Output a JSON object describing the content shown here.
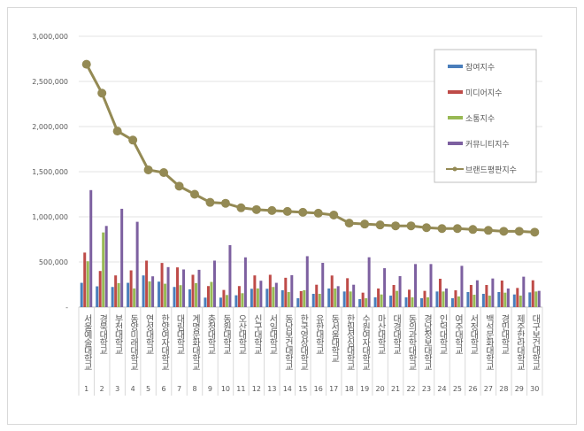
{
  "chart_data": {
    "type": "bar+line",
    "title": "",
    "xlabel": "",
    "ylabel": "",
    "ylim": [
      0,
      3000000
    ],
    "yticks": [
      "-",
      "500,000",
      "1,000,000",
      "1,500,000",
      "2,000,000",
      "2,500,000",
      "3,000,000"
    ],
    "grid": true,
    "legend_position": "top-right",
    "categories": [
      "서울예술대학교",
      "경북대학교",
      "부천대학교",
      "동양미래대학교",
      "연성대학교",
      "한양여자대학교",
      "대림대학교",
      "계명문화대학교",
      "충청대학교",
      "동원대학교",
      "오산대학교",
      "신구대학교",
      "서일대학교",
      "동남보건대학교",
      "한국영상대학교",
      "유한대학교",
      "동서울대학교",
      "한림성심대학교",
      "수원여자대학교",
      "마산대학교",
      "대경대학교",
      "동의과학대학교",
      "경남정보대학교",
      "인덕대학교",
      "여주대학교",
      "서정대학교",
      "백석문화대학교",
      "경민대학교",
      "제주한라대학교",
      "대구보건대학교"
    ],
    "ranks": [
      "1",
      "2",
      "3",
      "4",
      "5",
      "6",
      "7",
      "8",
      "9",
      "10",
      "11",
      "12",
      "13",
      "14",
      "15",
      "16",
      "17",
      "18",
      "19",
      "20",
      "21",
      "22",
      "23",
      "24",
      "25",
      "26",
      "27",
      "28",
      "29",
      "30"
    ],
    "series": [
      {
        "name": "참여지수",
        "type": "bar",
        "color": "#4a7ebb",
        "values": [
          269000,
          230000,
          223000,
          269000,
          351000,
          282000,
          223000,
          197000,
          105000,
          105000,
          131000,
          203000,
          203000,
          187000,
          98000,
          147000,
          206000,
          173000,
          88000,
          108000,
          127000,
          108000,
          98000,
          173000,
          98000,
          167000,
          147000,
          167000,
          140000,
          163000
        ]
      },
      {
        "name": "미디어지수",
        "type": "bar",
        "color": "#be4b48",
        "values": [
          604000,
          400000,
          351000,
          407000,
          515000,
          489000,
          440000,
          358000,
          233000,
          190000,
          233000,
          351000,
          358000,
          325000,
          177000,
          248000,
          350000,
          320000,
          160000,
          206000,
          245000,
          193000,
          180000,
          314000,
          186000,
          245000,
          245000,
          294000,
          212000,
          297000
        ]
      },
      {
        "name": "소통지수",
        "type": "bar",
        "color": "#98b954",
        "values": [
          508000,
          827000,
          266000,
          207000,
          285000,
          259000,
          243000,
          266000,
          279000,
          134000,
          154000,
          207000,
          223000,
          167000,
          187000,
          147000,
          206000,
          173000,
          98000,
          140000,
          180000,
          108000,
          108000,
          173000,
          118000,
          137000,
          127000,
          160000,
          127000,
          173000
        ]
      },
      {
        "name": "커뮤니티지수",
        "type": "bar",
        "color": "#7d60a0",
        "values": [
          1296000,
          899000,
          1089000,
          945000,
          341000,
          443000,
          417000,
          413000,
          515000,
          686000,
          551000,
          292000,
          269000,
          354000,
          564000,
          490000,
          232000,
          248000,
          552000,
          431000,
          343000,
          477000,
          477000,
          206000,
          457000,
          297000,
          317000,
          206000,
          337000,
          180000
        ]
      },
      {
        "name": "브랜드평판지수",
        "type": "line",
        "color": "#948a54",
        "values": [
          2690000,
          2370000,
          1950000,
          1850000,
          1520000,
          1490000,
          1340000,
          1250000,
          1160000,
          1150000,
          1100000,
          1080000,
          1070000,
          1060000,
          1050000,
          1040000,
          1020000,
          930000,
          920000,
          910000,
          900000,
          900000,
          880000,
          870000,
          870000,
          860000,
          850000,
          840000,
          840000,
          830000
        ]
      }
    ]
  }
}
